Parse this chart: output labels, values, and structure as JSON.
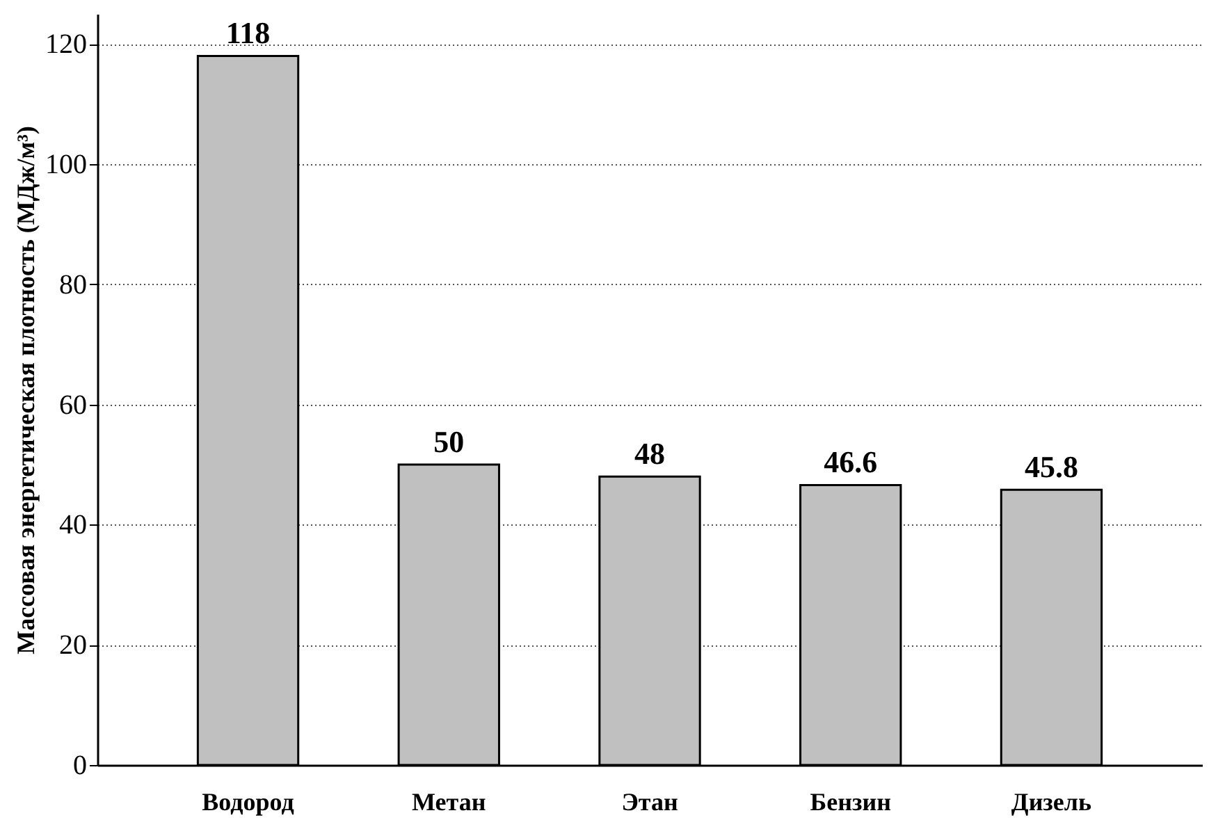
{
  "chart_data": {
    "type": "bar",
    "ylabel": "Массовая энергетическая плотность (МДж/м³)",
    "categories": [
      "Водород",
      "Метан",
      "Этан",
      "Бензин",
      "Дизель"
    ],
    "values": [
      118,
      50,
      48,
      46.6,
      45.8
    ],
    "data_labels": true,
    "color": "#c0c0c0",
    "ylim": [
      0,
      125
    ],
    "yticks": [
      0,
      20,
      40,
      60,
      80,
      100,
      120
    ],
    "grid": "y"
  }
}
